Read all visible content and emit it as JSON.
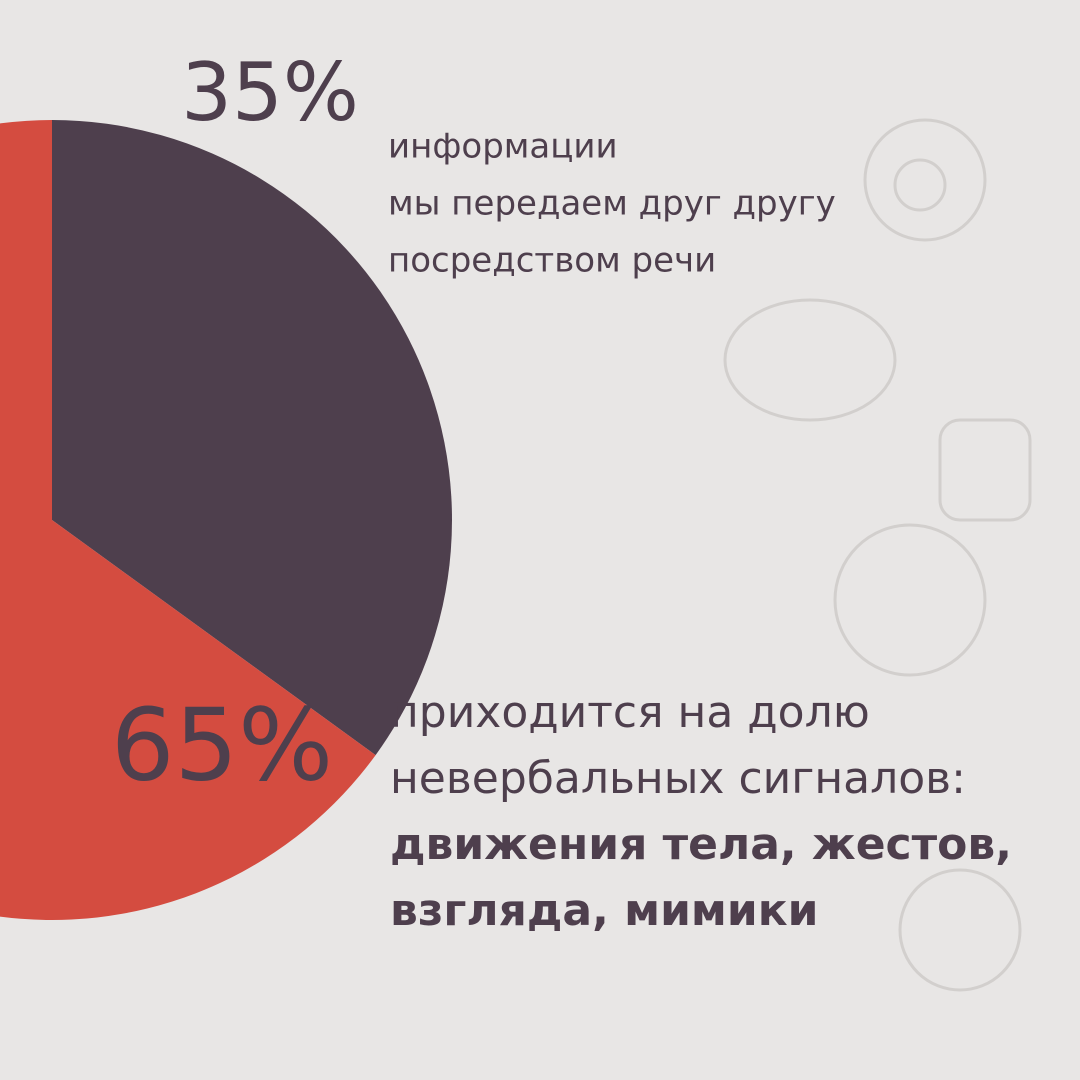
{
  "chart_data": {
    "type": "pie",
    "values": [
      35,
      65
    ],
    "value_labels": [
      "35%",
      "65%"
    ],
    "colors": [
      "#4e3f4d",
      "#d44c40"
    ],
    "descriptions": [
      {
        "lines": [
          "информации",
          "мы передаем друг другу",
          "посредством речи"
        ],
        "bold_lines": []
      },
      {
        "lines": [
          "приходится на долю",
          "невербальных сигналов:"
        ],
        "bold_lines": [
          "движения тела, жестов,",
          "взгляда, мимики"
        ]
      }
    ]
  }
}
